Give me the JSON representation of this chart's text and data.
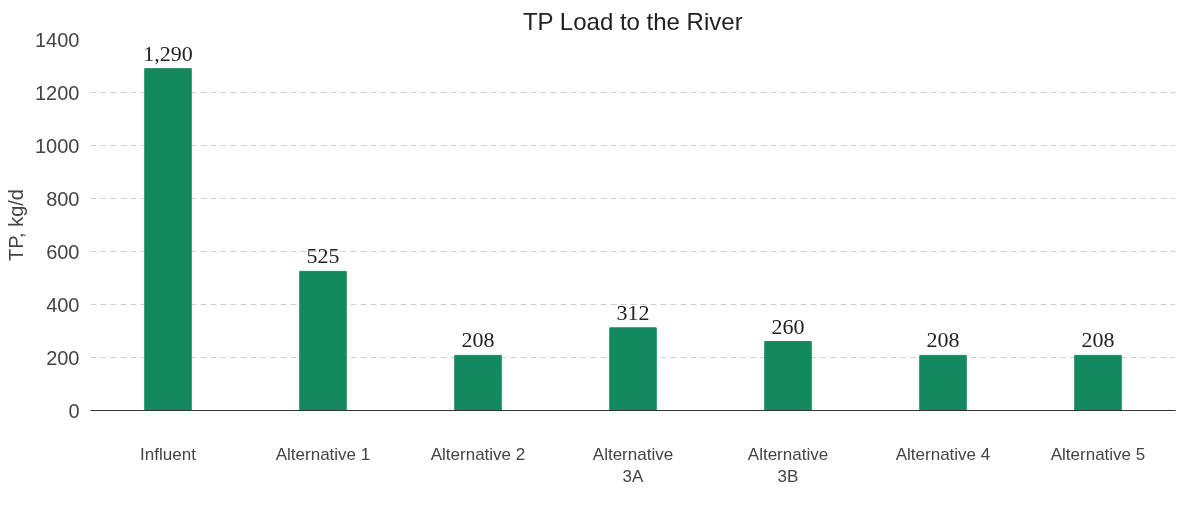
{
  "chart_data": {
    "type": "bar",
    "title": "TP Load to the River",
    "ylabel": "TP, kg/d",
    "categories": [
      "Influent",
      "Alternative 1",
      "Alternative 2",
      "Alternative\n3A",
      "Alternative\n3B",
      "Alternative 4",
      "Alternative 5"
    ],
    "values": [
      1290,
      525,
      208,
      312,
      260,
      208,
      208
    ],
    "value_labels": [
      "1,290",
      "525",
      "208",
      "312",
      "260",
      "208",
      "208"
    ],
    "color": "#138a5e",
    "ylim": [
      0,
      1400
    ],
    "yticks": [
      0,
      200,
      400,
      600,
      800,
      1000,
      1200,
      1400
    ],
    "grid": "y"
  }
}
